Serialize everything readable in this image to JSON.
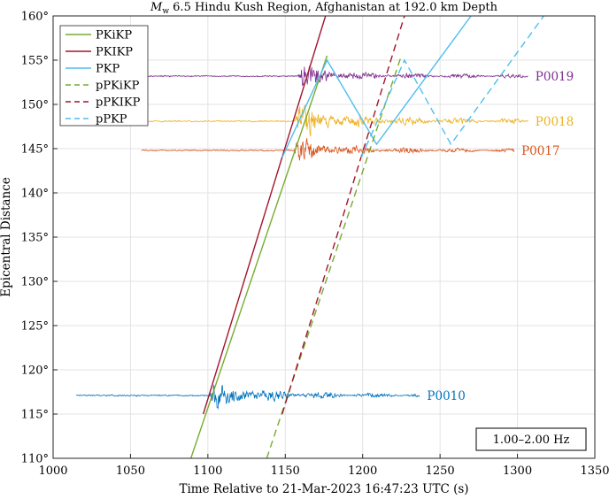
{
  "chart_data": {
    "type": "line",
    "title_prefix": "M",
    "title_sub": "w",
    "title_rest": " 6.5 Hindu Kush Region, Afghanistan at 192.0 km Depth",
    "xlabel": "Time Relative to 21-Mar-2023 16:47:23 UTC (s)",
    "ylabel": "Epicentral Distance",
    "xlim": [
      1000,
      1350
    ],
    "ylim": [
      110,
      160
    ],
    "xticks": [
      1000,
      1050,
      1100,
      1150,
      1200,
      1250,
      1300,
      1350
    ],
    "yticks": [
      110,
      115,
      120,
      125,
      130,
      135,
      140,
      145,
      150,
      155,
      160
    ],
    "ytick_suffix": "°",
    "grid": true,
    "legend_position": "top-left",
    "filter_label": "1.00–2.00 Hz",
    "phases": [
      {
        "name": "PKiKP",
        "color": "#77ac30",
        "dash": false,
        "points": [
          [
            1089,
            110
          ],
          [
            1177,
            155.5
          ]
        ]
      },
      {
        "name": "PKIKP",
        "color": "#a2142f",
        "dash": false,
        "points": [
          [
            1097,
            115
          ],
          [
            1176,
            160
          ]
        ]
      },
      {
        "name": "PKP",
        "color": "#4dbeee",
        "dash": false,
        "points": [
          [
            1148,
            144
          ],
          [
            1177,
            155
          ],
          [
            1209,
            145.5
          ],
          [
            1270,
            160
          ]
        ]
      },
      {
        "name": "pPKiKP",
        "color": "#77ac30",
        "dash": true,
        "points": [
          [
            1138,
            110
          ],
          [
            1225,
            155.5
          ]
        ]
      },
      {
        "name": "pPKIKP",
        "color": "#a2142f",
        "dash": true,
        "points": [
          [
            1148,
            115
          ],
          [
            1227,
            160
          ]
        ]
      },
      {
        "name": "pPKP",
        "color": "#4dbeee",
        "dash": true,
        "points": [
          [
            1199,
            144
          ],
          [
            1227,
            155
          ],
          [
            1257,
            145.5
          ],
          [
            1317,
            160
          ]
        ]
      }
    ],
    "stations": [
      {
        "name": "P0019",
        "distance": 153.2,
        "t_start": 1040,
        "t_end": 1307,
        "color": "#7e2f8e",
        "onset": 1160,
        "amp": 2.9,
        "seed": 19
      },
      {
        "name": "P0018",
        "distance": 148.1,
        "t_start": 1049,
        "t_end": 1307,
        "color": "#edb120",
        "onset": 1158,
        "amp": 3.8,
        "seed": 18
      },
      {
        "name": "P0017",
        "distance": 144.8,
        "t_start": 1057,
        "t_end": 1298,
        "color": "#d95319",
        "onset": 1157,
        "amp": 2.9,
        "seed": 17
      },
      {
        "name": "P0010",
        "distance": 117.1,
        "t_start": 1015,
        "t_end": 1237,
        "color": "#0072bd",
        "onset": 1103,
        "amp": 3.6,
        "seed": 10
      }
    ]
  }
}
